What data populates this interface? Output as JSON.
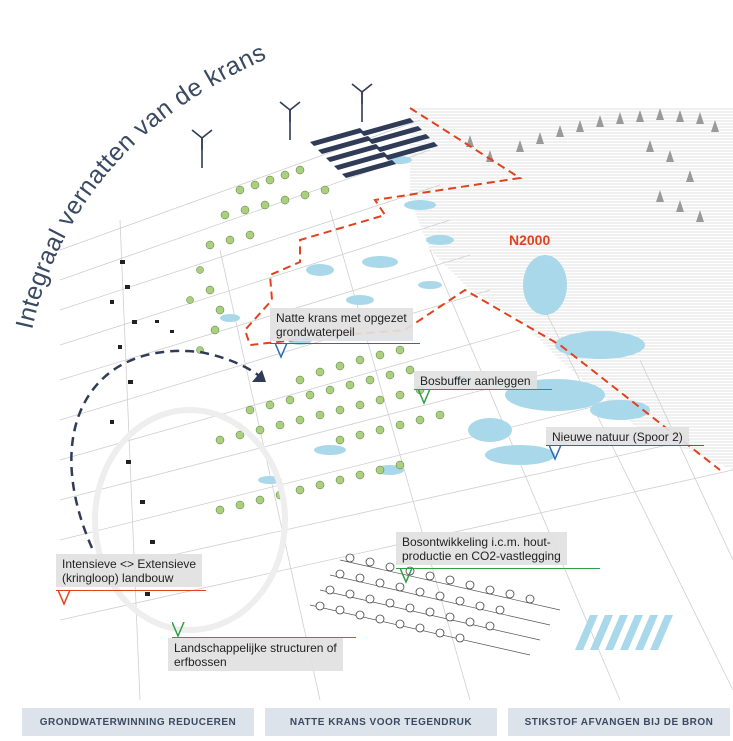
{
  "title": "Integraal vernatten van de krans",
  "map_label": "N2000",
  "callouts": {
    "natte_krans": "Natte krans met opgezet grondwaterpeil",
    "natte_krans_l1": "Natte krans met opgezet",
    "natte_krans_l2": "grondwaterpeil",
    "bosbuffer": "Bosbuffer aanleggen",
    "nieuwe_natuur": "Nieuwe natuur (Spoor 2)",
    "bosontwikkeling_l1": "Bosontwikkeling i.c.m. hout-",
    "bosontwikkeling_l2": "productie en CO2-vastlegging",
    "intensieve_l1": "Intensieve <> Extensieve",
    "intensieve_l2": "(kringloop) landbouw",
    "landschap_l1": "Landschappelijke structuren of",
    "landschap_l2": "erfbossen"
  },
  "footer": {
    "item1": "GRONDWATERWINNING REDUCEREN",
    "item2": "NATTE KRANS VOOR TEGENDRUK",
    "item3": "STIKSTOF AFVANGEN BIJ DE BRON"
  },
  "colors": {
    "blue_line": "#2b6cb0",
    "green_line": "#2f9e44",
    "red_line": "#e0421f",
    "water": "#a9d8ea",
    "title": "#3a4a63",
    "footer_bg": "#dde3ea"
  }
}
